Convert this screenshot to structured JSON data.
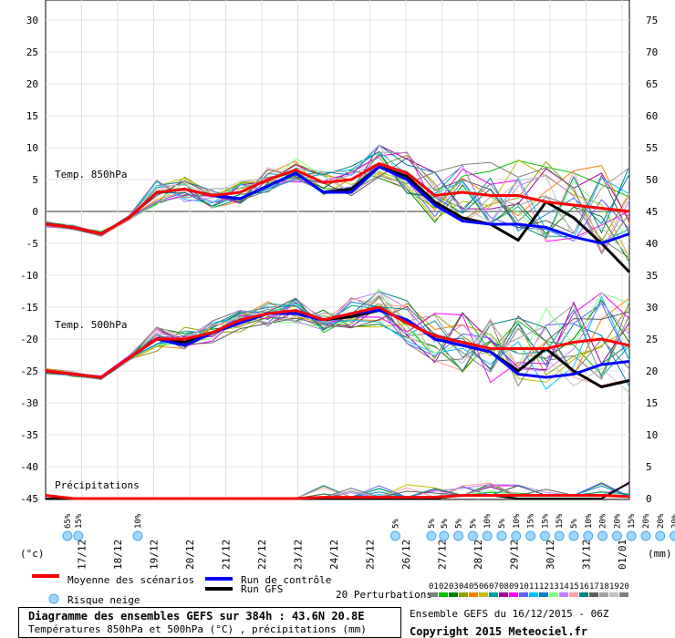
{
  "chart_data": {
    "type": "line",
    "x_dates": [
      "17/12",
      "18/12",
      "19/12",
      "20/12",
      "21/12",
      "22/12",
      "23/12",
      "24/12",
      "25/12",
      "26/12",
      "27/12",
      "28/12",
      "29/12",
      "30/12",
      "31/12",
      "01/01"
    ],
    "left_axis": {
      "unit": "(°c)",
      "ticks": [
        30,
        25,
        20,
        15,
        10,
        5,
        0,
        -5,
        -10,
        -15,
        -20,
        -25,
        -30,
        -35,
        -40,
        -45
      ]
    },
    "right_axis": {
      "unit": "(mm)",
      "ticks": [
        75,
        70,
        65,
        60,
        55,
        50,
        45,
        40,
        35,
        30,
        25,
        20,
        15,
        10,
        5,
        0
      ]
    },
    "panel_labels": {
      "t850": "Temp. 850hPa",
      "t500": "Temp. 500hPa",
      "precip": "Précipitations"
    },
    "snow_risk": [
      {
        "day": 0.15,
        "label": "65%"
      },
      {
        "day": 0.45,
        "label": "15%"
      },
      {
        "day": 2.1,
        "label": "10%"
      },
      {
        "day": 9.25,
        "label": "5%"
      },
      {
        "day": 10.25,
        "label": "5%"
      },
      {
        "day": 10.6,
        "label": "5%"
      },
      {
        "day": 11.0,
        "label": "5%"
      },
      {
        "day": 11.4,
        "label": "5%"
      },
      {
        "day": 11.8,
        "label": "10%"
      },
      {
        "day": 12.2,
        "label": "5%"
      },
      {
        "day": 12.6,
        "label": "10%"
      },
      {
        "day": 13.0,
        "label": "15%"
      },
      {
        "day": 13.4,
        "label": "15%"
      },
      {
        "day": 13.8,
        "label": "15%"
      },
      {
        "day": 14.2,
        "label": "5%"
      },
      {
        "day": 14.6,
        "label": "10%"
      },
      {
        "day": 15.0,
        "label": "20%"
      },
      {
        "day": 15.4,
        "label": "20%"
      },
      {
        "day": 15.8,
        "label": "15%"
      },
      {
        "day": 16.2,
        "label": "20%"
      },
      {
        "day": 16.6,
        "label": "20%"
      },
      {
        "day": 17.0,
        "label": "20%"
      },
      {
        "day": 17.4,
        "label": "15%"
      },
      {
        "day": 17.8,
        "label": "10%"
      },
      {
        "day": 18.2,
        "label": "20%"
      },
      {
        "day": 18.6,
        "label": "20%"
      },
      {
        "day": 19.0,
        "label": "15%"
      },
      {
        "day": 19.4,
        "label": "15%"
      },
      {
        "day": 19.8,
        "label": "25%"
      }
    ],
    "series": [
      {
        "name": "Moyenne des scénarios",
        "color": "#ff0000",
        "t850": [
          -2,
          -2.5,
          -3.5,
          -1,
          3,
          3.5,
          2.5,
          3,
          5,
          6.5,
          4.5,
          5,
          7.5,
          6,
          2.5,
          3,
          2.5,
          2.5,
          1.5,
          1,
          0.5,
          0
        ],
        "t500": [
          -25,
          -25.5,
          -26,
          -23,
          -20,
          -20,
          -19,
          -17,
          -16,
          -15.5,
          -17,
          -16,
          -15,
          -17.5,
          -19.5,
          -20.5,
          -21.5,
          -21.5,
          -21.5,
          -20.5,
          -20,
          -21
        ],
        "precip": [
          0.5,
          0,
          0,
          0,
          0,
          0,
          0,
          0,
          0,
          0,
          0.2,
          0.2,
          0.2,
          0.2,
          0.2,
          0.5,
          0.5,
          0.5,
          0.5,
          0.5,
          0.5,
          0.3
        ]
      },
      {
        "name": "Run de contrôle",
        "color": "#0000ff",
        "t850": [
          -2,
          -2.5,
          -3.5,
          -1,
          3,
          3.5,
          2.5,
          2,
          4,
          6,
          3,
          3,
          7,
          5,
          1,
          -1.5,
          -2,
          -2,
          -2.5,
          -4,
          -5,
          -3.5
        ],
        "t500": [
          -25,
          -25.5,
          -26,
          -23,
          -20,
          -21,
          -19,
          -17.5,
          -16,
          -16,
          -17,
          -16,
          -15.5,
          -17,
          -20,
          -21,
          -22,
          -25.5,
          -26,
          -25.5,
          -24,
          -23.5
        ]
      },
      {
        "name": "Run GFS",
        "color": "#000000",
        "t850": [
          -2,
          -2.5,
          -3.5,
          -1,
          3,
          3.5,
          2.5,
          2,
          4,
          6,
          3,
          3.5,
          7,
          5.5,
          1.5,
          -1,
          -2,
          -4.5,
          1.5,
          -1,
          -5,
          -9.5
        ],
        "t500": [
          -25,
          -25.5,
          -26,
          -23,
          -20,
          -20.5,
          -19,
          -17,
          -16,
          -16,
          -17,
          -16.5,
          -15.5,
          -17,
          -20,
          -21,
          -22,
          -25,
          -21.5,
          -25,
          -27.5,
          -26.5
        ],
        "precip": [
          0,
          0,
          0,
          0,
          0,
          0,
          0,
          0,
          0,
          0,
          0,
          0,
          0,
          0,
          0,
          0.5,
          0.5,
          0,
          0,
          0,
          0,
          2.5
        ]
      }
    ],
    "legend": {
      "mean": "Moyenne des scénarios",
      "control": "Run de contrôle",
      "gfs": "Run GFS",
      "snow": "Risque neige",
      "perturbations": "20 Perturbations",
      "pert_numbers": [
        "01",
        "02",
        "03",
        "04",
        "05",
        "06",
        "07",
        "08",
        "09",
        "10",
        "11",
        "12",
        "13",
        "14",
        "15",
        "16",
        "17",
        "18",
        "19",
        "20"
      ],
      "pert_colors": [
        "#7f7f7f",
        "#00c000",
        "#008000",
        "#90a000",
        "#ff8000",
        "#c0c000",
        "#00a0a0",
        "#a000a0",
        "#ff00ff",
        "#6060ff",
        "#00c0ff",
        "#0080c0",
        "#80ff80",
        "#c080ff",
        "#ffa0a0",
        "#008080",
        "#606060",
        "#a0a0a0",
        "#c0c0c0",
        "#808080"
      ]
    }
  },
  "title": {
    "line1": "Diagramme des ensembles GEFS sur 384h : 43.6N 20.8E",
    "line2": "Températures 850hPa et 500hPa (°C) , précipitations (mm)"
  },
  "footer": {
    "run": "Ensemble GEFS du 16/12/2015 - 06Z",
    "copyright": "Copyright 2015 Meteociel.fr"
  }
}
